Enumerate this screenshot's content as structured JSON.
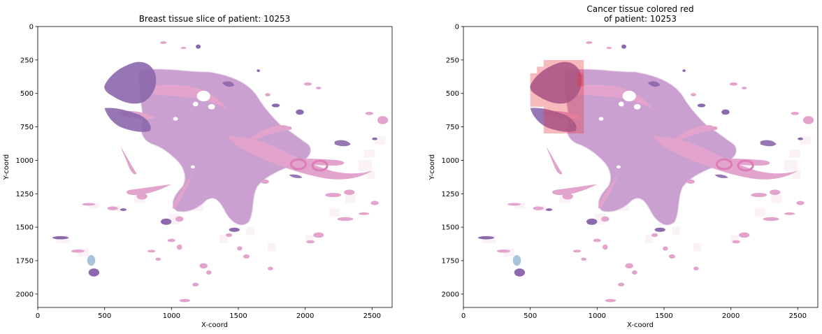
{
  "chart_data": [
    {
      "type": "image",
      "title": "Breast tissue slice of patient: 10253",
      "title_lines": [
        "Breast tissue slice of patient: 10253"
      ],
      "xlabel": "X-coord",
      "ylabel": "Y-coord",
      "xlim": [
        0,
        2650
      ],
      "ylim": [
        2100,
        0
      ],
      "xticks": [
        0,
        500,
        1000,
        1500,
        2000,
        2500
      ],
      "yticks": [
        0,
        250,
        500,
        750,
        1000,
        1250,
        1500,
        1750,
        2000
      ],
      "cancer_overlay": false
    },
    {
      "type": "image",
      "title": "Cancer tissue colored red of patient: 10253",
      "title_lines": [
        "Cancer tissue colored red",
        "of patient: 10253"
      ],
      "xlabel": "X-coord",
      "ylabel": "Y-coord",
      "xlim": [
        0,
        2650
      ],
      "ylim": [
        2100,
        0
      ],
      "xticks": [
        0,
        500,
        1000,
        1500,
        2000,
        2500
      ],
      "yticks": [
        0,
        250,
        500,
        750,
        1000,
        1250,
        1500,
        1750,
        2000
      ],
      "cancer_overlay": true,
      "cancer_color": "#e8393f"
    }
  ],
  "colors": {
    "tissue_pink": "#e2a3cc",
    "tissue_lavender": "#c9a0cf",
    "tissue_purple": "#8c67ad",
    "tissue_light": "#f1d8ea",
    "cancer_red": "#e8393f"
  }
}
